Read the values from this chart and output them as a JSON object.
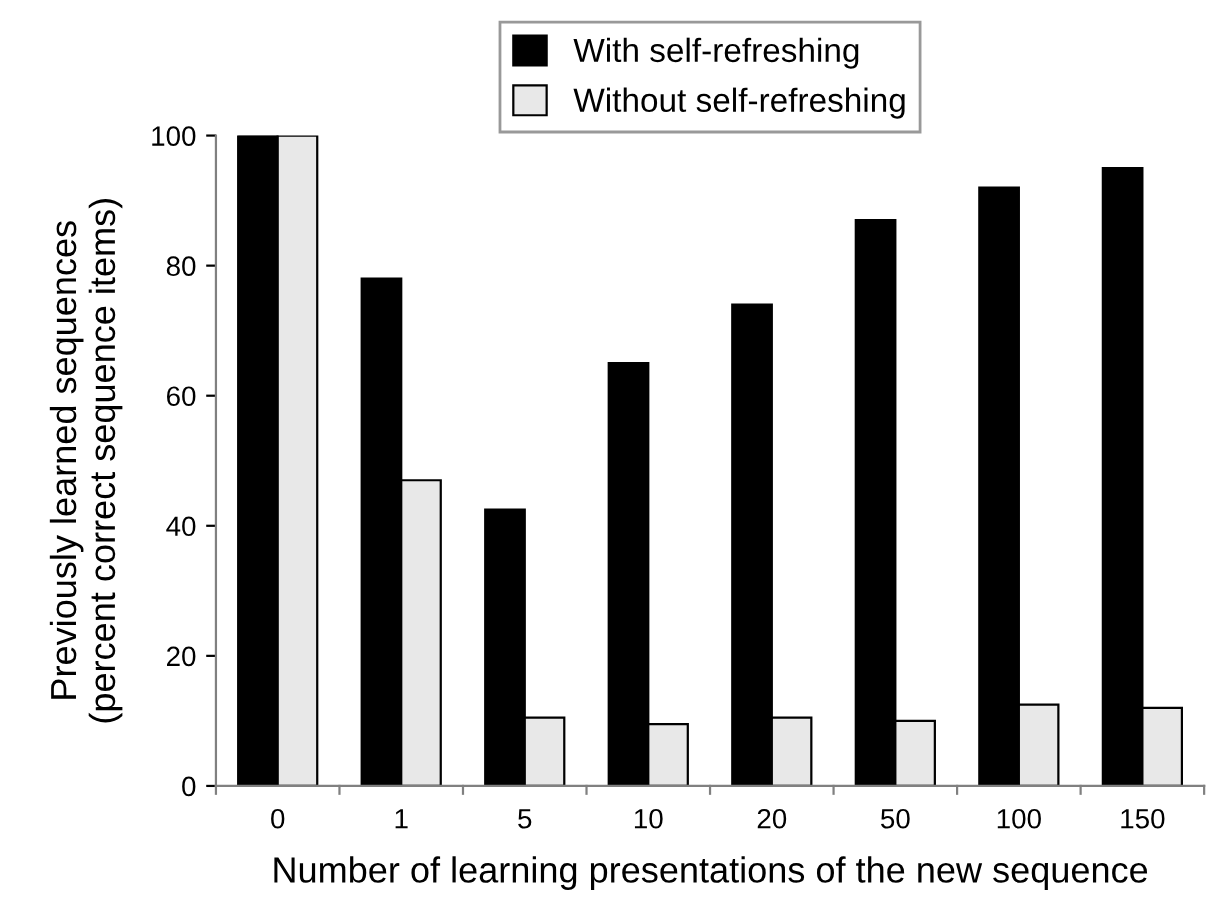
{
  "chart_data": {
    "type": "bar",
    "xlabel": "Number of learning presentations of the new sequence",
    "ylabel": "Previously learned sequences\n(percent correct sequence items)",
    "categories": [
      "0",
      "1",
      "5",
      "10",
      "20",
      "50",
      "100",
      "150"
    ],
    "series": [
      {
        "name": "With self-refreshing",
        "color": "#000000",
        "values": [
          100,
          78,
          42.5,
          65,
          74,
          87,
          92,
          95
        ]
      },
      {
        "name": "Without self-refreshing",
        "color": "#e8e8e8",
        "values": [
          100,
          47,
          10.5,
          9.5,
          10.5,
          10,
          12.5,
          12
        ]
      }
    ],
    "ylim": [
      0,
      100
    ],
    "yticks": [
      0,
      20,
      40,
      60,
      80,
      100
    ],
    "grid": false,
    "legend": "top"
  }
}
